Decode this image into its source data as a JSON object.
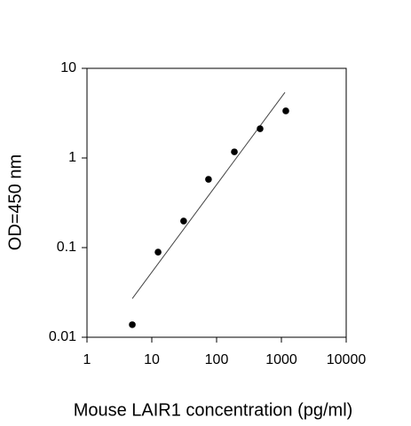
{
  "chart_data": {
    "type": "scatter",
    "x_label": "Mouse LAIR1 concentration (pg/ml)",
    "y_label": "OD=450 nm",
    "x": [
      5,
      12.5,
      31,
      75,
      188,
      469,
      1170
    ],
    "y": [
      0.0138,
      0.089,
      0.198,
      0.578,
      1.17,
      2.12,
      3.35
    ],
    "color": "#000000",
    "trendline": {
      "x": [
        5,
        1135
      ],
      "y": [
        0.027,
        5.4
      ],
      "color": "#444444"
    },
    "xscale": "log",
    "yscale": "log",
    "xlim": [
      1,
      10000
    ],
    "ylim": [
      0.01,
      10
    ],
    "xticks": [
      1,
      10,
      100,
      1000,
      10000
    ],
    "yticks": [
      0.01,
      0.1,
      1,
      10
    ]
  }
}
